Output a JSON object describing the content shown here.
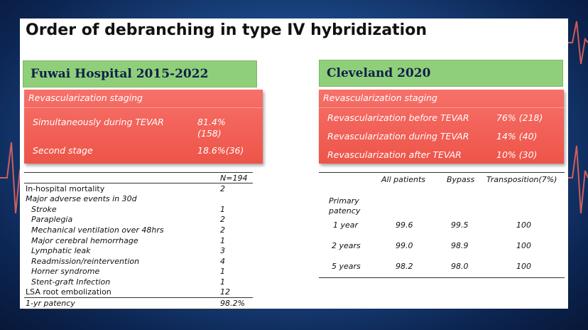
{
  "title": "Order of debranching in type IV hybridization",
  "left": {
    "header": "Fuwai Hospital 2015-2022",
    "staging": {
      "heading": "Revascularization staging",
      "rows": [
        {
          "label": "Simultaneously during TEVAR",
          "value": "81.4%",
          "value2": "(158)"
        },
        {
          "label": "Second stage",
          "value": "18.6%(36)"
        }
      ]
    },
    "table": {
      "col_header": "N=194",
      "rows": [
        {
          "label": "In-hospital mortality",
          "value": "2"
        },
        {
          "label": "Major adverse events in 30d",
          "value": ""
        },
        {
          "label": "Stroke",
          "value": "1"
        },
        {
          "label": "Paraplegia",
          "value": "2"
        },
        {
          "label": "Mechanical ventilation over 48hrs",
          "value": "2"
        },
        {
          "label": "Major cerebral hemorrhage",
          "value": "1"
        },
        {
          "label": "Lymphatic leak",
          "value": "3"
        },
        {
          "label": "Readmission/reintervention",
          "value": "4"
        },
        {
          "label": "Horner syndrome",
          "value": "1"
        },
        {
          "label": "Stent-graft Infection",
          "value": "1"
        },
        {
          "label": "LSA root embolization",
          "value": "12"
        },
        {
          "label": "1-yr patency",
          "value": "98.2%"
        }
      ]
    }
  },
  "right": {
    "header": "Cleveland 2020",
    "staging": {
      "heading": "Revascularization staging",
      "rows": [
        {
          "label": "Revascularization before TEVAR",
          "value": "76% (218)"
        },
        {
          "label": "Revascularization during TEVAR",
          "value": "14% (40)"
        },
        {
          "label": "Revascularization after TEVAR",
          "value": "10% (30)"
        }
      ]
    },
    "table": {
      "columns": [
        "All patients",
        "Bypass",
        "Transposition(7%)"
      ],
      "row_group": "Primary",
      "row_group2": "patency",
      "rows": [
        {
          "label": "1 year",
          "values": [
            "99.6",
            "99.5",
            "100"
          ]
        },
        {
          "label": "2 years",
          "values": [
            "99.0",
            "98.9",
            "100"
          ]
        },
        {
          "label": "5 years",
          "values": [
            "98.2",
            "98.0",
            "100"
          ]
        }
      ]
    }
  }
}
